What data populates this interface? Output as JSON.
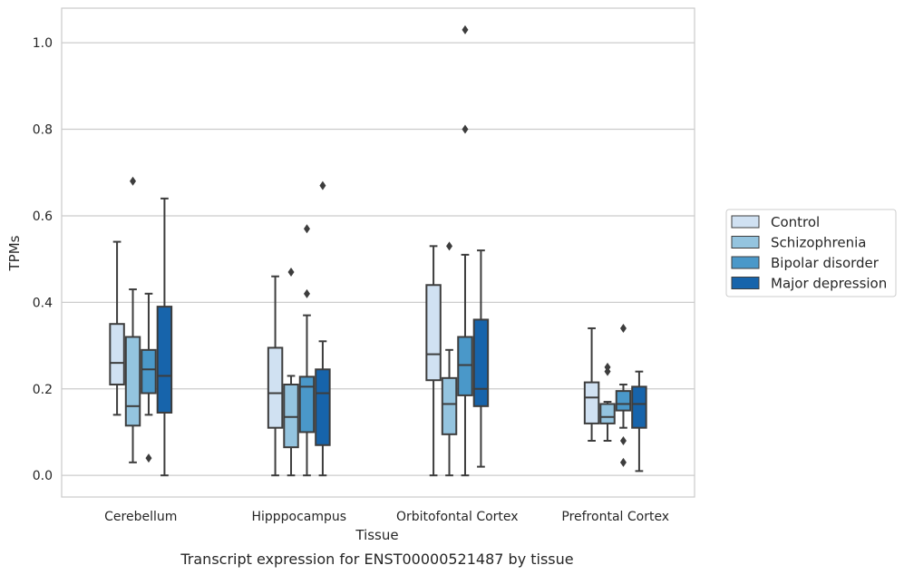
{
  "chart_data": {
    "type": "box",
    "xlabel": "Tissue",
    "ylabel": "TPMs",
    "caption": "Transcript expression for ENST00000521487 by tissue",
    "ylim": [
      -0.05,
      1.08
    ],
    "yticks": [
      0.0,
      0.2,
      0.4,
      0.6,
      0.8,
      1.0
    ],
    "ytick_labels": [
      "0.0",
      "0.2",
      "0.4",
      "0.6",
      "0.8",
      "1.0"
    ],
    "grid": "horizontal",
    "legend_position": "right",
    "categories": [
      "Cerebellum",
      "Hipppocampus",
      "Orbitofontal Cortex",
      "Prefrontal Cortex"
    ],
    "series": [
      {
        "name": "Control",
        "color": "#d0e1f2",
        "boxes": [
          {
            "whisker_low": 0.14,
            "q1": 0.21,
            "median": 0.26,
            "q3": 0.35,
            "whisker_high": 0.54,
            "outliers": []
          },
          {
            "whisker_low": 0.0,
            "q1": 0.11,
            "median": 0.19,
            "q3": 0.295,
            "whisker_high": 0.46,
            "outliers": []
          },
          {
            "whisker_low": 0.0,
            "q1": 0.22,
            "median": 0.28,
            "q3": 0.44,
            "whisker_high": 0.53,
            "outliers": []
          },
          {
            "whisker_low": 0.08,
            "q1": 0.12,
            "median": 0.18,
            "q3": 0.215,
            "whisker_high": 0.34,
            "outliers": []
          }
        ]
      },
      {
        "name": "Schizophrenia",
        "color": "#94c4df",
        "boxes": [
          {
            "whisker_low": 0.03,
            "q1": 0.115,
            "median": 0.16,
            "q3": 0.32,
            "whisker_high": 0.43,
            "outliers": [
              0.68
            ]
          },
          {
            "whisker_low": 0.0,
            "q1": 0.065,
            "median": 0.135,
            "q3": 0.21,
            "whisker_high": 0.23,
            "outliers": [
              0.47
            ]
          },
          {
            "whisker_low": 0.0,
            "q1": 0.095,
            "median": 0.165,
            "q3": 0.225,
            "whisker_high": 0.29,
            "outliers": [
              0.53
            ]
          },
          {
            "whisker_low": 0.08,
            "q1": 0.12,
            "median": 0.135,
            "q3": 0.165,
            "whisker_high": 0.17,
            "outliers": [
              0.24,
              0.25
            ]
          }
        ]
      },
      {
        "name": "Bipolar disorder",
        "color": "#4a98c9",
        "boxes": [
          {
            "whisker_low": 0.14,
            "q1": 0.19,
            "median": 0.245,
            "q3": 0.29,
            "whisker_high": 0.42,
            "outliers": [
              0.04
            ]
          },
          {
            "whisker_low": 0.0,
            "q1": 0.1,
            "median": 0.205,
            "q3": 0.228,
            "whisker_high": 0.37,
            "outliers": [
              0.42,
              0.57
            ]
          },
          {
            "whisker_low": 0.0,
            "q1": 0.185,
            "median": 0.255,
            "q3": 0.32,
            "whisker_high": 0.51,
            "outliers": [
              0.8,
              1.03
            ]
          },
          {
            "whisker_low": 0.11,
            "q1": 0.15,
            "median": 0.165,
            "q3": 0.195,
            "whisker_high": 0.21,
            "outliers": [
              0.08,
              0.03,
              0.34
            ]
          }
        ]
      },
      {
        "name": "Major depression",
        "color": "#1764ab",
        "boxes": [
          {
            "whisker_low": 0.0,
            "q1": 0.145,
            "median": 0.23,
            "q3": 0.39,
            "whisker_high": 0.64,
            "outliers": []
          },
          {
            "whisker_low": 0.0,
            "q1": 0.07,
            "median": 0.19,
            "q3": 0.245,
            "whisker_high": 0.31,
            "outliers": [
              0.67
            ]
          },
          {
            "whisker_low": 0.02,
            "q1": 0.16,
            "median": 0.2,
            "q3": 0.36,
            "whisker_high": 0.52,
            "outliers": []
          },
          {
            "whisker_low": 0.01,
            "q1": 0.11,
            "median": 0.165,
            "q3": 0.205,
            "whisker_high": 0.24,
            "outliers": []
          }
        ]
      }
    ]
  }
}
